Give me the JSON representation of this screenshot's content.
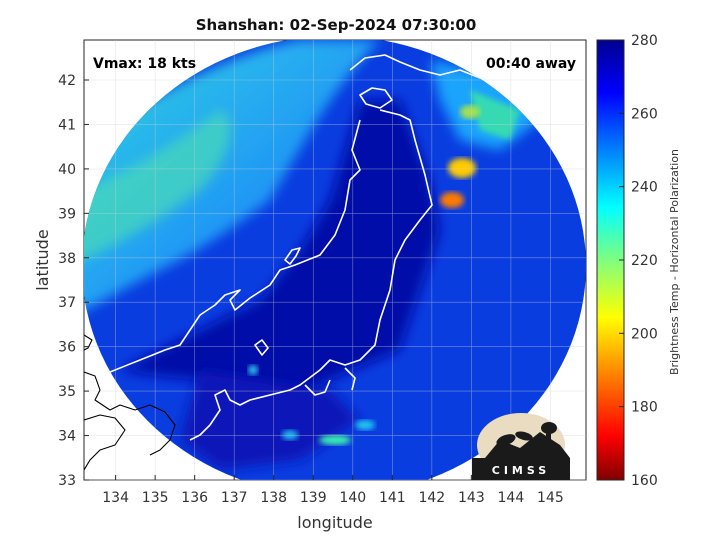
{
  "title": "Shanshan: 02-Sep-2024 07:30:00",
  "vmax_label": "Vmax: 18 kts",
  "time_label": "00:40 away",
  "xlabel": "longitude",
  "ylabel": "latitude",
  "colorbar_label": "Brightness Temp - Horizontal Polarization",
  "logo_text": "CIMSS",
  "x_ticks": [
    "134",
    "135",
    "136",
    "137",
    "138",
    "139",
    "140",
    "141",
    "142",
    "143",
    "144",
    "145"
  ],
  "y_ticks": [
    "33",
    "34",
    "35",
    "36",
    "37",
    "38",
    "39",
    "40",
    "41",
    "42"
  ],
  "colorbar_ticks": [
    "160",
    "180",
    "200",
    "220",
    "240",
    "260",
    "280"
  ],
  "map": {
    "lon_range": [
      133.2,
      145.9
    ],
    "lat_range": [
      33.0,
      42.9
    ],
    "grid": true,
    "swath": "circular",
    "coastline_color": "#ffffff",
    "coastline_outside_color": "#000000"
  },
  "colorscale": {
    "range": [
      160,
      280
    ],
    "colors": [
      "#7f0000",
      "#ff0000",
      "#ff8c00",
      "#ffff00",
      "#7fff7f",
      "#00ffff",
      "#0080ff",
      "#0000ff",
      "#00008f"
    ]
  }
}
